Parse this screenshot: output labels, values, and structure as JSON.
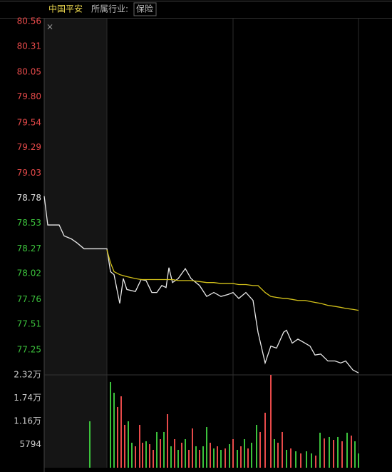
{
  "header": {
    "stock": "中国平安",
    "industry_label": "所属行业:",
    "industry": "保险"
  },
  "chart_data": [
    {
      "type": "line",
      "prev_close": 78.78,
      "up_color": "#e84a4a",
      "down_color": "#3cc23c",
      "flat_color": "#e0e0e0",
      "xlim": [
        0,
        441
      ],
      "xgrid": [
        88,
        265,
        441
      ],
      "ylim": [
        77.0,
        80.56
      ],
      "yticks": [
        {
          "value": 80.56,
          "label": "80.56"
        },
        {
          "value": 80.31,
          "label": "80.31"
        },
        {
          "value": 80.05,
          "label": "80.05"
        },
        {
          "value": 79.8,
          "label": "79.80"
        },
        {
          "value": 79.54,
          "label": "79.54"
        },
        {
          "value": 79.29,
          "label": "79.29"
        },
        {
          "value": 79.03,
          "label": "79.03"
        },
        {
          "value": 78.78,
          "label": "78.78"
        },
        {
          "value": 78.53,
          "label": "78.53"
        },
        {
          "value": 78.27,
          "label": "78.27"
        },
        {
          "value": 78.02,
          "label": "78.02"
        },
        {
          "value": 77.76,
          "label": "77.76"
        },
        {
          "value": 77.51,
          "label": "77.51"
        },
        {
          "value": 77.25,
          "label": "77.25"
        }
      ],
      "x": [
        0,
        5,
        21,
        28,
        38,
        46,
        56,
        88,
        93,
        98,
        106,
        111,
        116,
        128,
        136,
        143,
        151,
        158,
        165,
        171,
        175,
        180,
        188,
        198,
        206,
        218,
        228,
        238,
        248,
        258,
        265,
        273,
        283,
        293,
        300,
        310,
        318,
        326,
        336,
        340,
        348,
        356,
        366,
        373,
        380,
        388,
        398,
        408,
        416,
        423,
        433,
        441
      ],
      "series": [
        {
          "color": "#e8e8e8",
          "values": [
            78.8,
            78.51,
            78.51,
            78.4,
            78.37,
            78.33,
            78.27,
            78.27,
            78.04,
            78.01,
            77.72,
            77.97,
            77.86,
            77.84,
            77.96,
            77.95,
            77.83,
            77.83,
            77.9,
            77.88,
            78.08,
            77.93,
            77.97,
            78.07,
            77.97,
            77.9,
            77.79,
            77.83,
            77.79,
            77.81,
            77.83,
            77.77,
            77.83,
            77.75,
            77.43,
            77.12,
            77.29,
            77.27,
            77.43,
            77.45,
            77.32,
            77.36,
            77.32,
            77.29,
            77.2,
            77.21,
            77.14,
            77.14,
            77.12,
            77.14,
            77.05,
            77.02
          ]
        },
        {
          "color": "#d4c21a",
          "values": [
            null,
            null,
            null,
            null,
            null,
            null,
            null,
            78.26,
            78.13,
            78.04,
            78.01,
            78.0,
            77.99,
            77.97,
            77.96,
            77.96,
            77.96,
            77.96,
            77.96,
            77.96,
            77.96,
            77.96,
            77.95,
            77.95,
            77.95,
            77.94,
            77.93,
            77.93,
            77.92,
            77.92,
            77.92,
            77.91,
            77.91,
            77.9,
            77.9,
            77.83,
            77.79,
            77.78,
            77.77,
            77.77,
            77.76,
            77.75,
            77.75,
            77.74,
            77.73,
            77.72,
            77.7,
            77.69,
            77.68,
            77.67,
            77.66,
            77.65
          ]
        }
      ]
    },
    {
      "type": "bar",
      "xlim": [
        0,
        441
      ],
      "ylim": [
        0,
        23176
      ],
      "yticks": [
        {
          "value": 23176,
          "label": "2.32万"
        },
        {
          "value": 17382,
          "label": "1.74万"
        },
        {
          "value": 11588,
          "label": "1.16万"
        },
        5794
      ],
      "x": [
        64,
        93,
        98,
        103,
        108,
        113,
        118,
        123,
        128,
        134,
        138,
        143,
        148,
        153,
        158,
        163,
        168,
        173,
        178,
        183,
        188,
        193,
        198,
        203,
        208,
        213,
        218,
        223,
        228,
        233,
        238,
        243,
        248,
        254,
        260,
        265,
        271,
        276,
        281,
        286,
        291,
        298,
        303,
        310,
        318,
        323,
        328,
        334,
        340,
        346,
        353,
        360,
        368,
        375,
        381,
        387,
        393,
        400,
        406,
        412,
        418,
        425,
        431,
        436,
        441
      ],
      "values": [
        11590,
        21400,
        18720,
        15160,
        17830,
        10700,
        11590,
        6240,
        5350,
        10700,
        6240,
        6600,
        5880,
        4460,
        8920,
        7130,
        8920,
        13370,
        5350,
        7130,
        4460,
        6240,
        7130,
        4460,
        9810,
        5350,
        4460,
        5350,
        10160,
        6240,
        4810,
        5350,
        4460,
        4810,
        5880,
        7130,
        4460,
        5350,
        7130,
        4810,
        6240,
        10700,
        8920,
        13730,
        23170,
        7130,
        6240,
        8920,
        4460,
        4810,
        4100,
        3570,
        4100,
        3570,
        3030,
        8740,
        7310,
        7670,
        6950,
        7670,
        6600,
        8740,
        8020,
        6600,
        3570
      ],
      "colors": [
        "#3cc23c",
        "#3cc23c",
        "#3cc23c",
        "#e84a4a",
        "#e84a4a",
        "#e84a4a",
        "#3cc23c",
        "#3cc23c",
        "#e84a4a",
        "#e84a4a",
        "#e84a4a",
        "#3cc23c",
        "#e84a4a",
        "#e84a4a",
        "#3cc23c",
        "#e84a4a",
        "#3cc23c",
        "#e84a4a",
        "#3cc23c",
        "#e84a4a",
        "#3cc23c",
        "#e84a4a",
        "#3cc23c",
        "#e84a4a",
        "#e84a4a",
        "#3cc23c",
        "#e84a4a",
        "#3cc23c",
        "#3cc23c",
        "#e84a4a",
        "#3cc23c",
        "#e84a4a",
        "#3cc23c",
        "#e84a4a",
        "#3cc23c",
        "#e84a4a",
        "#3cc23c",
        "#e84a4a",
        "#3cc23c",
        "#e84a4a",
        "#3cc23c",
        "#3cc23c",
        "#e84a4a",
        "#e84a4a",
        "#e84a4a",
        "#3cc23c",
        "#e84a4a",
        "#e84a4a",
        "#3cc23c",
        "#e84a4a",
        "#3cc23c",
        "#e84a4a",
        "#3cc23c",
        "#3cc23c",
        "#e84a4a",
        "#3cc23c",
        "#e84a4a",
        "#3cc23c",
        "#e84a4a",
        "#3cc23c",
        "#e84a4a",
        "#3cc23c",
        "#e84a4a",
        "#3cc23c",
        "#3cc23c"
      ]
    }
  ]
}
